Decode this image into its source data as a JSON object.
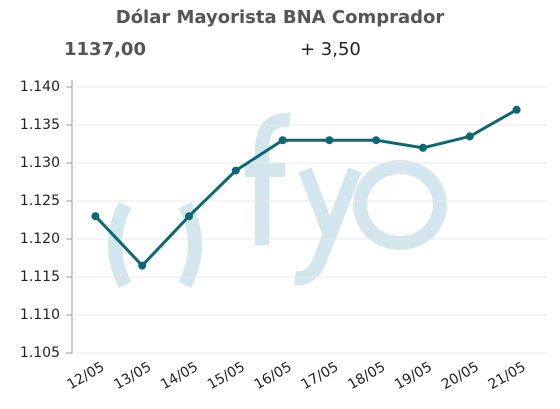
{
  "chart_data": {
    "type": "line",
    "title": "Dólar Mayorista BNA Comprador",
    "value_text": "1137,00",
    "change_text": "+ 3,50",
    "categories": [
      "12/05",
      "13/05",
      "14/05",
      "15/05",
      "16/05",
      "17/05",
      "18/05",
      "19/05",
      "20/05",
      "21/05"
    ],
    "series": [
      {
        "color": "#0e6670",
        "values": [
          1123,
          1116.5,
          1123,
          1129,
          1133,
          1133,
          1133,
          1132,
          1133.5,
          1137
        ]
      }
    ],
    "ylim": [
      1105,
      1140
    ],
    "yticks": [
      {
        "value": 1105,
        "label": "1.105"
      },
      {
        "value": 1110,
        "label": "1.110"
      },
      {
        "value": 1115,
        "label": "1.115"
      },
      {
        "value": 1120,
        "label": "1.120"
      },
      {
        "value": 1125,
        "label": "1.125"
      },
      {
        "value": 1130,
        "label": "1.130"
      },
      {
        "value": 1135,
        "label": "1.135"
      },
      {
        "value": 1140,
        "label": "1.140"
      }
    ],
    "grid": true
  }
}
